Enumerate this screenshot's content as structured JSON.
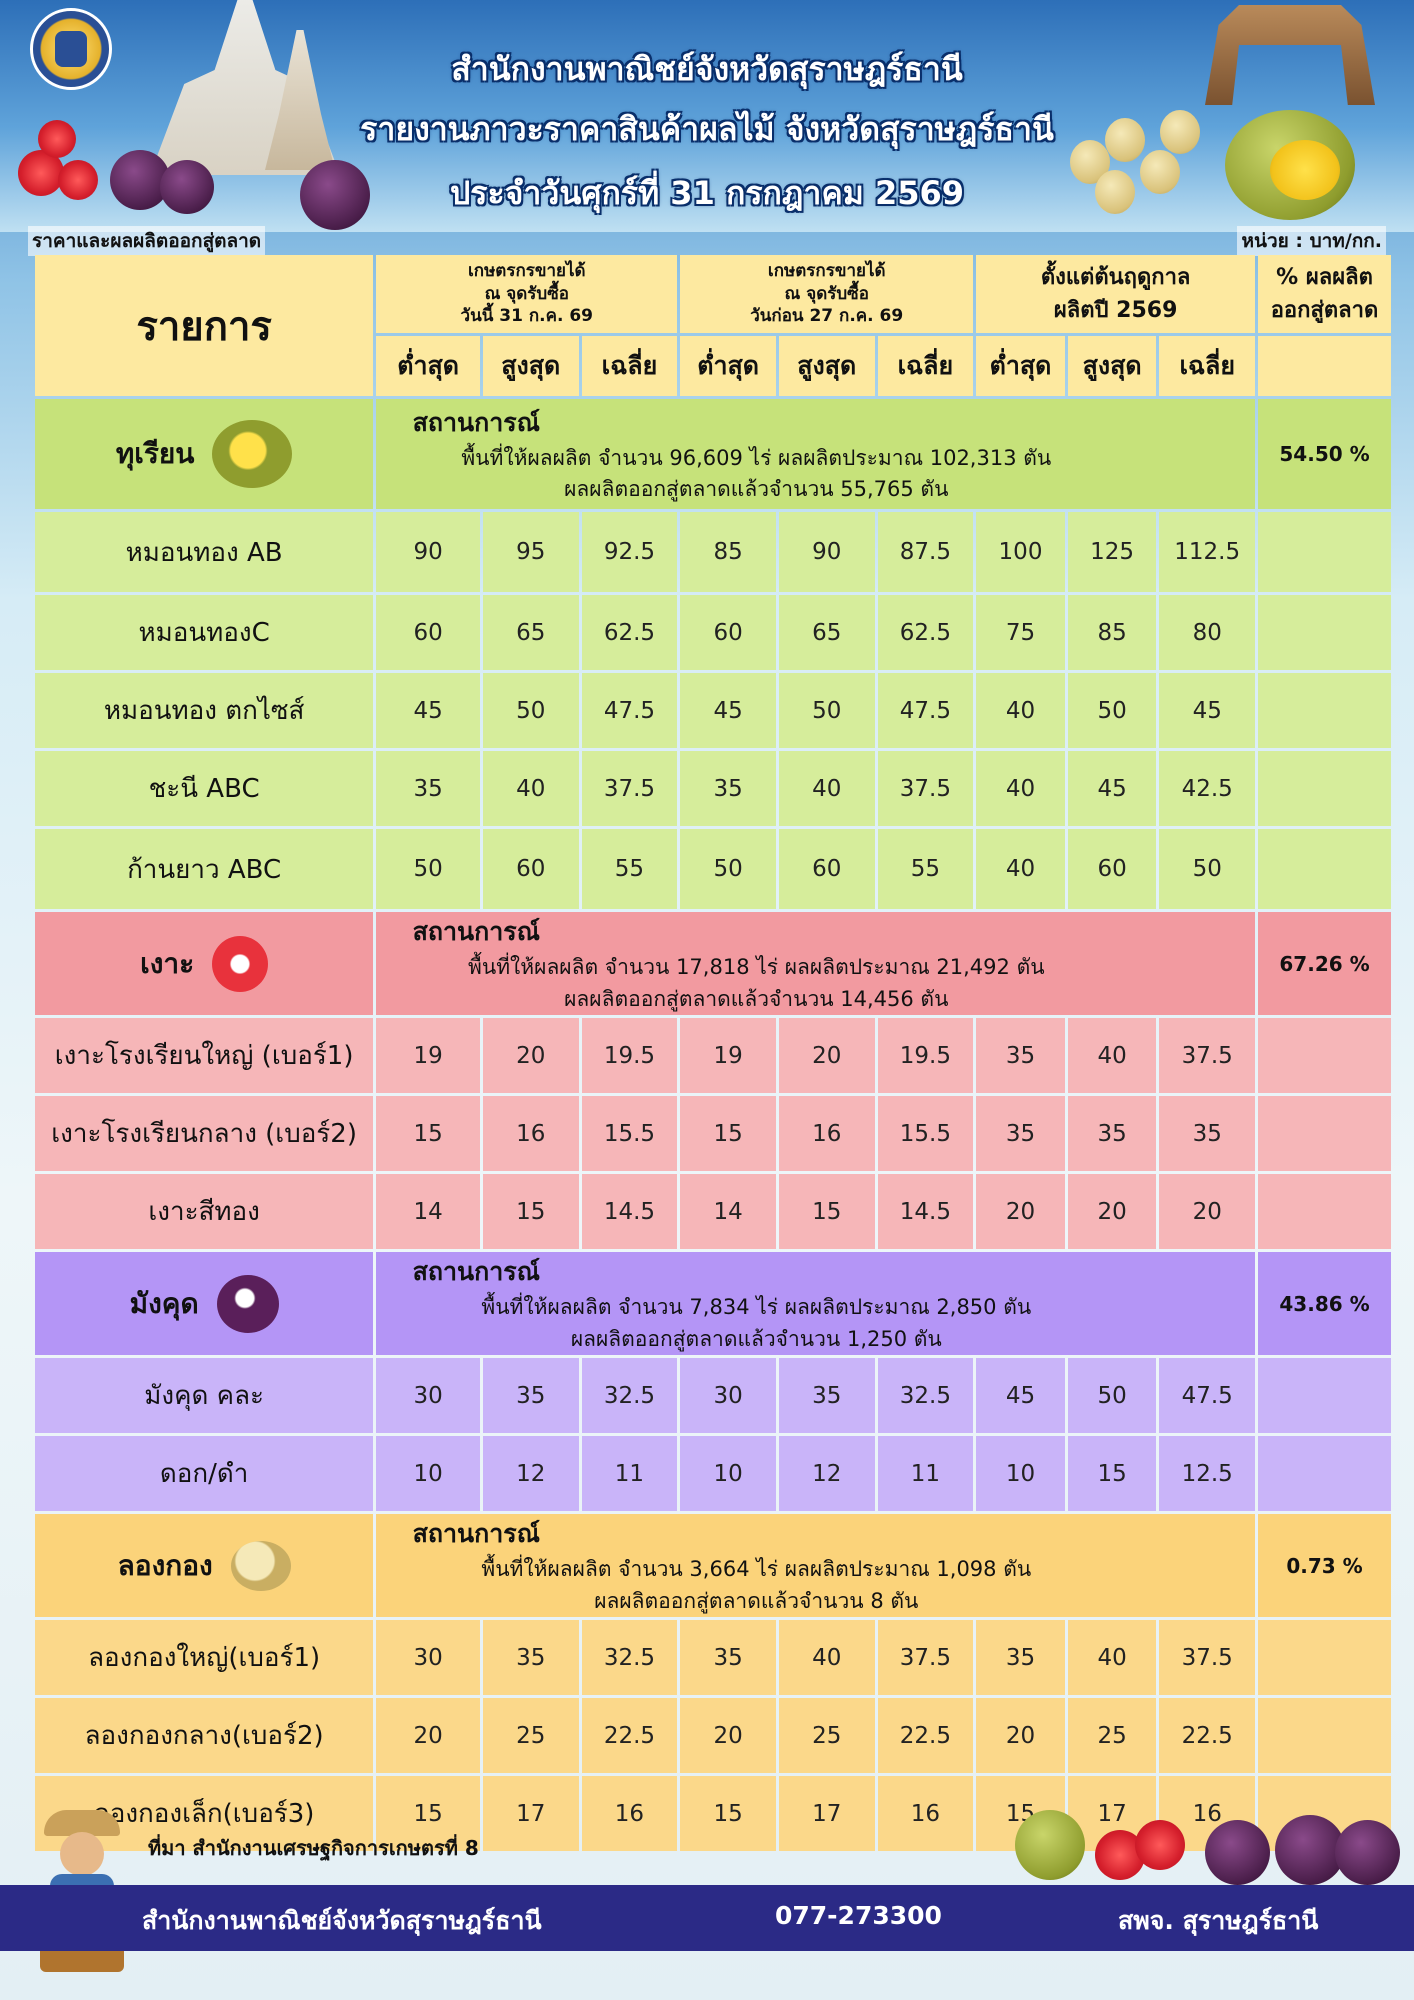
{
  "header": {
    "office_title": "สำนักงานพาณิชย์จังหวัดสุราษฎร์ธานี",
    "report_title": "รายงานภาวะราคาสินค้าผลไม้ จังหวัดสุราษฎร์ธานี",
    "date_title": "ประจำวันศุกร์ที่ 31 กรกฎาคม 2569",
    "sub_left": "ราคาและผลผลิตออกสู่ตลาด",
    "sub_right": "หน่วย : บาท/กก."
  },
  "table_header": {
    "item_label": "รายการ",
    "group1": {
      "line1": "เกษตรกรขายได้",
      "line2": "ณ จุดรับซื้อ",
      "line3": "วันนี้  31 ก.ค. 69"
    },
    "group2": {
      "line1": "เกษตรกรขายได้",
      "line2": "ณ จุดรับซื้อ",
      "line3": "วันก่อน 27 ก.ค. 69"
    },
    "group3": {
      "line1": "ตั้งแต่ต้นฤดูกาล",
      "line2": "ผลิตปี 2569"
    },
    "group4": {
      "line1": "% ผลผลิต",
      "line2": "ออกสู่ตลาด"
    },
    "min": "ต่ำสุด",
    "max": "สูงสุด",
    "avg": "เฉลี่ย"
  },
  "sections": [
    {
      "name": "ทุเรียน",
      "icon": "durian-icon",
      "situation_label": "สถานการณ์",
      "situation_line1": "พื้นที่ให้ผลผลิต จำนวน 96,609 ไร่ ผลผลิตประมาณ 102,313 ตัน",
      "situation_line2": "ผลผลิตออกสู่ตลาดแล้วจำนวน 55,765 ตัน",
      "percent": "54.50 %",
      "rows": [
        {
          "label": "หมอนทอง AB",
          "v": [
            "90",
            "95",
            "92.5",
            "85",
            "90",
            "87.5",
            "100",
            "125",
            "112.5"
          ]
        },
        {
          "label": "หมอนทองC",
          "v": [
            "60",
            "65",
            "62.5",
            "60",
            "65",
            "62.5",
            "75",
            "85",
            "80"
          ]
        },
        {
          "label": "หมอนทอง ตกไซส์",
          "v": [
            "45",
            "50",
            "47.5",
            "45",
            "50",
            "47.5",
            "40",
            "50",
            "45"
          ]
        },
        {
          "label": "ชะนี ABC",
          "v": [
            "35",
            "40",
            "37.5",
            "35",
            "40",
            "37.5",
            "40",
            "45",
            "42.5"
          ]
        },
        {
          "label": "ก้านยาว ABC",
          "v": [
            "50",
            "60",
            "55",
            "50",
            "60",
            "55",
            "40",
            "60",
            "50"
          ]
        }
      ]
    },
    {
      "name": "เงาะ",
      "icon": "rambutan-icon",
      "situation_label": "สถานการณ์",
      "situation_line1": "พื้นที่ให้ผลผลิต จำนวน 17,818 ไร่ ผลผลิตประมาณ  21,492 ตัน",
      "situation_line2": "ผลผลิตออกสู่ตลาดแล้วจำนวน 14,456 ตัน",
      "percent": "67.26 %",
      "rows": [
        {
          "label": "เงาะโรงเรียนใหญ่ (เบอร์1)",
          "v": [
            "19",
            "20",
            "19.5",
            "19",
            "20",
            "19.5",
            "35",
            "40",
            "37.5"
          ]
        },
        {
          "label": "เงาะโรงเรียนกลาง (เบอร์2)",
          "v": [
            "15",
            "16",
            "15.5",
            "15",
            "16",
            "15.5",
            "35",
            "35",
            "35"
          ]
        },
        {
          "label": "เงาะสีทอง",
          "v": [
            "14",
            "15",
            "14.5",
            "14",
            "15",
            "14.5",
            "20",
            "20",
            "20"
          ]
        }
      ]
    },
    {
      "name": "มังคุด",
      "icon": "mangosteen-icon",
      "situation_label": "สถานการณ์",
      "situation_line1": "พื้นที่ให้ผลผลิต จำนวน 7,834 ไร่ ผลผลิตประมาณ  2,850 ตัน",
      "situation_line2": "ผลผลิตออกสู่ตลาดแล้วจำนวน 1,250 ตัน",
      "percent": "43.86 %",
      "rows": [
        {
          "label": "มังคุด คละ",
          "v": [
            "30",
            "35",
            "32.5",
            "30",
            "35",
            "32.5",
            "45",
            "50",
            "47.5"
          ]
        },
        {
          "label": "ดอก/ดำ",
          "v": [
            "10",
            "12",
            "11",
            "10",
            "12",
            "11",
            "10",
            "15",
            "12.5"
          ]
        }
      ]
    },
    {
      "name": "ลองกอง",
      "icon": "longkong-icon",
      "situation_label": "สถานการณ์",
      "situation_line1": "พื้นที่ให้ผลผลิต จำนวน 3,664 ไร่ ผลผลิตประมาณ 1,098 ตัน",
      "situation_line2": "ผลผลิตออกสู่ตลาดแล้วจำนวน 8 ตัน",
      "percent": "0.73 %",
      "rows": [
        {
          "label": "ลองกองใหญ่(เบอร์1)",
          "v": [
            "30",
            "35",
            "32.5",
            "35",
            "40",
            "37.5",
            "35",
            "40",
            "37.5"
          ]
        },
        {
          "label": "ลองกองกลาง(เบอร์2)",
          "v": [
            "20",
            "25",
            "22.5",
            "20",
            "25",
            "22.5",
            "20",
            "25",
            "22.5"
          ]
        },
        {
          "label": "ลองกองเล็ก(เบอร์3)",
          "v": [
            "15",
            "17",
            "16",
            "15",
            "17",
            "16",
            "15",
            "17",
            "16"
          ]
        }
      ]
    }
  ],
  "footer": {
    "source": "ที่มา สำนักงานเศรษฐกิจการเกษตรที่ 8",
    "office": "สำนักงานพาณิชย์จังหวัดสุราษฎร์ธานี",
    "phone": "077-273300",
    "short": "สพจ. สุราษฎร์ธานี"
  }
}
